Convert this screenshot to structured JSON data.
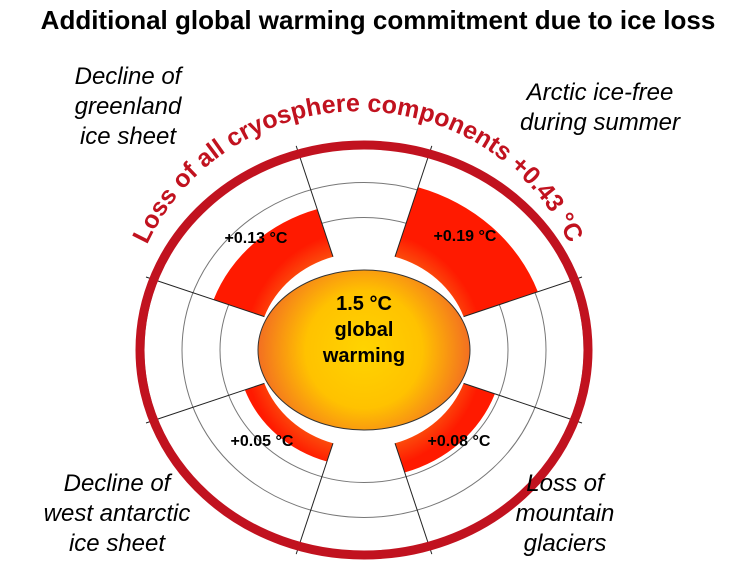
{
  "title": "Additional global warming commitment due to ice loss",
  "center": {
    "line1": "1.5 °C",
    "line2": "global",
    "line3": "warming"
  },
  "outer_label": "Loss of all cryosphere components +0.43 °C",
  "components": [
    {
      "name_lines": [
        "Decline of",
        "greenland",
        "ice sheet"
      ],
      "value_label": "+0.13 °C",
      "value": 0.13
    },
    {
      "name_lines": [
        "Arctic ice-free",
        "during summer"
      ],
      "value_label": "+0.19 °C",
      "value": 0.19
    },
    {
      "name_lines": [
        "Loss of",
        "mountain",
        "glaciers"
      ],
      "value_label": "+0.08 °C",
      "value": 0.08
    },
    {
      "name_lines": [
        "Decline of",
        "west antarctic",
        "ice sheet"
      ],
      "value_label": "+0.05 °C",
      "value": 0.05
    }
  ],
  "colors": {
    "ring": "#c1121f",
    "sector_inner": "#f7941d",
    "sector_outer": "#ff1a00",
    "center_core": "#ffd400",
    "center_edge": "#f36f21"
  }
}
